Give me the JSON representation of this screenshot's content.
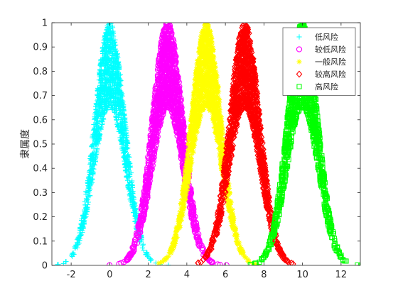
{
  "chart_data": {
    "type": "scatter",
    "title": "",
    "xlabel": "",
    "ylabel": "隶属度",
    "xlim": [
      -3,
      13
    ],
    "ylim": [
      0,
      1
    ],
    "xticks": [
      -2,
      0,
      2,
      4,
      6,
      8,
      10,
      12
    ],
    "yticks": [
      0,
      0.1,
      0.2,
      0.3,
      0.4,
      0.5,
      0.6,
      0.7,
      0.8,
      0.9,
      1
    ],
    "grid": false,
    "legend_position": "top-right",
    "series": [
      {
        "name": "低风险",
        "center": 0,
        "spread": 0.8,
        "color": "#00FFFF",
        "marker": "plus"
      },
      {
        "name": "较低风险",
        "center": 3,
        "spread": 0.8,
        "color": "#FF00FF",
        "marker": "circle"
      },
      {
        "name": "一般风险",
        "center": 5,
        "spread": 0.8,
        "color": "#FFFF00",
        "marker": "star"
      },
      {
        "name": "较高风险",
        "center": 7,
        "spread": 0.8,
        "color": "#FF0000",
        "marker": "diamond"
      },
      {
        "name": "高风险",
        "center": 10,
        "spread": 0.8,
        "color": "#00FF00",
        "marker": "square"
      }
    ]
  }
}
